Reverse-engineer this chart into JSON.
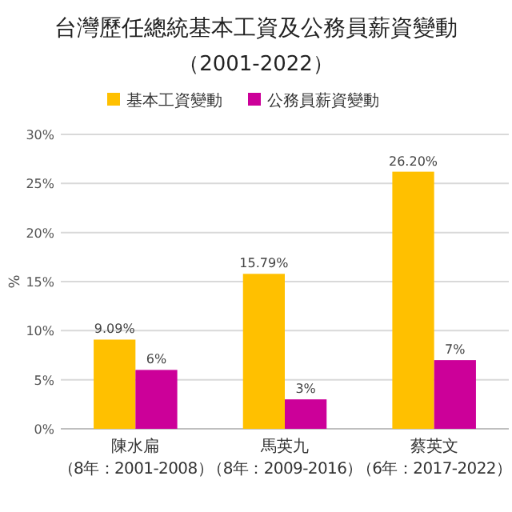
{
  "chart_data": {
    "type": "bar",
    "title": "台灣歷任總統基本工資及公務員薪資變動",
    "subtitle": "（2001-2022）",
    "ylabel": "%",
    "categories": [
      "陳水扁（8年：2001-2008）",
      "馬英九（8年：2009-2016）",
      "蔡英文（6年：2017-2022）"
    ],
    "series": [
      {
        "name": "基本工資變動",
        "color": "#ffc000",
        "values": [
          9.09,
          15.79,
          26.2
        ],
        "value_labels": [
          "9.09%",
          "15.79%",
          "26.20%"
        ]
      },
      {
        "name": "公務員薪資變動",
        "color": "#cc0099",
        "values": [
          6,
          3,
          7
        ],
        "value_labels": [
          "6%",
          "3%",
          "7%"
        ]
      }
    ],
    "ylim": [
      0,
      30
    ],
    "yticks": [
      {
        "value": 0,
        "label": "0%"
      },
      {
        "value": 5,
        "label": "5%"
      },
      {
        "value": 10,
        "label": "10%"
      },
      {
        "value": 15,
        "label": "15%"
      },
      {
        "value": 20,
        "label": "20%"
      },
      {
        "value": 25,
        "label": "25%"
      },
      {
        "value": 30,
        "label": "30%"
      }
    ],
    "grid": "y",
    "legend": "top"
  }
}
